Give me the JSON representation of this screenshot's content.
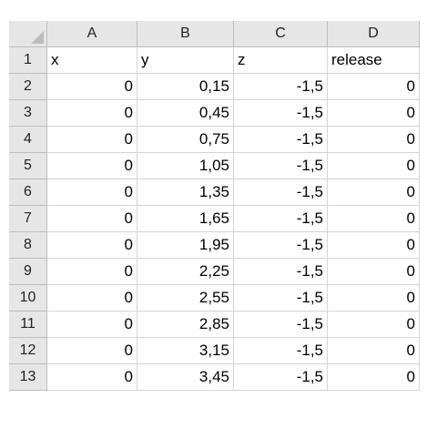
{
  "columns": [
    "A",
    "B",
    "C",
    "D"
  ],
  "row_numbers": [
    "1",
    "2",
    "3",
    "4",
    "5",
    "6",
    "7",
    "8",
    "9",
    "10",
    "11",
    "12",
    "13"
  ],
  "rows": [
    [
      "x",
      "y",
      "z",
      "release"
    ],
    [
      "0",
      "0,15",
      "-1,5",
      "0"
    ],
    [
      "0",
      "0,45",
      "-1,5",
      "0"
    ],
    [
      "0",
      "0,75",
      "-1,5",
      "0"
    ],
    [
      "0",
      "1,05",
      "-1,5",
      "0"
    ],
    [
      "0",
      "1,35",
      "-1,5",
      "0"
    ],
    [
      "0",
      "1,65",
      "-1,5",
      "0"
    ],
    [
      "0",
      "1,95",
      "-1,5",
      "0"
    ],
    [
      "0",
      "2,25",
      "-1,5",
      "0"
    ],
    [
      "0",
      "2,55",
      "-1,5",
      "0"
    ],
    [
      "0",
      "2,85",
      "-1,5",
      "0"
    ],
    [
      "0",
      "3,15",
      "-1,5",
      "0"
    ],
    [
      "0",
      "3,45",
      "-1,5",
      "0"
    ]
  ],
  "colors": {
    "header_bg": "#e6e6e6",
    "gridline": "#d4d4d4"
  }
}
